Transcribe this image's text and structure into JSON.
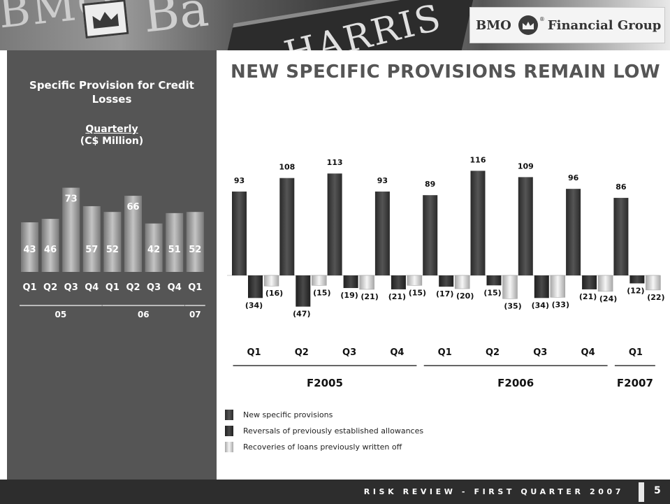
{
  "header": {
    "bg_text_1": "BMO",
    "bg_text_2": "Ba",
    "bg_text_3": "HARRIS",
    "brand_bmo": "BMO",
    "brand_fg": "Financial Group",
    "brand_reg": "®"
  },
  "sidebar": {
    "title": "Specific Provision for Credit Losses",
    "subtitle_underlined": "Quarterly",
    "subtitle_units": "(C$ Million)"
  },
  "main": {
    "title": "NEW SPECIFIC PROVISIONS REMAIN LOW"
  },
  "legend": {
    "items": [
      {
        "label": "New specific provisions",
        "color": "#3a3a3a"
      },
      {
        "label": "Reversals of previously established allowances",
        "color": "#2a2a2a"
      },
      {
        "label": "Recoveries of loans previously written off",
        "color": "#d8d8d8"
      }
    ]
  },
  "footer": {
    "text": "RISK REVIEW - FIRST QUARTER 2007",
    "page": "5"
  },
  "colors": {
    "sidebar_bg": "#555555",
    "new_bar": "#3a3a3a",
    "reversal_bar": "#2a2a2a",
    "recovery_bar": "#d8d8d8",
    "mini_bar": "#9a9a9a"
  },
  "chart_data": [
    {
      "type": "bar",
      "title": "Specific Provision for Credit Losses",
      "subtitle": "Quarterly (C$ Million)",
      "categories": [
        "Q1",
        "Q2",
        "Q3",
        "Q4",
        "Q1",
        "Q2",
        "Q3",
        "Q4",
        "Q1"
      ],
      "groups": [
        {
          "label": "05",
          "from": 0,
          "to": 3
        },
        {
          "label": "06",
          "from": 4,
          "to": 7
        },
        {
          "label": "07",
          "from": 8,
          "to": 8
        }
      ],
      "values": [
        43,
        46,
        73,
        57,
        52,
        66,
        42,
        51,
        52
      ],
      "value_labels": [
        "43",
        "46",
        "73",
        "57",
        "52",
        "66",
        "42",
        "51",
        "52"
      ]
    },
    {
      "type": "bar",
      "title": "NEW SPECIFIC PROVISIONS REMAIN LOW",
      "categories": [
        "Q1",
        "Q2",
        "Q3",
        "Q4",
        "Q1",
        "Q2",
        "Q3",
        "Q4",
        "Q1"
      ],
      "groups": [
        {
          "label": "F2005",
          "from": 0,
          "to": 3
        },
        {
          "label": "F2006",
          "from": 4,
          "to": 7
        },
        {
          "label": "F2007",
          "from": 8,
          "to": 8
        }
      ],
      "series": [
        {
          "name": "New specific provisions",
          "values": [
            93,
            108,
            113,
            93,
            89,
            116,
            109,
            96,
            86
          ],
          "labels": [
            "93",
            "108",
            "113",
            "93",
            "89",
            "116",
            "109",
            "96",
            "86"
          ]
        },
        {
          "name": "Reversals of previously established allowances",
          "values": [
            -34,
            -47,
            -19,
            -21,
            -17,
            -15,
            -34,
            -21,
            -12
          ],
          "labels": [
            "(34)",
            "(47)",
            "(19)",
            "(21)",
            "(17)",
            "(15)",
            "(34)",
            "(21)",
            "(12)"
          ]
        },
        {
          "name": "Recoveries of loans previously written off",
          "values": [
            -16,
            -15,
            -21,
            -15,
            -20,
            -35,
            -33,
            -24,
            -22
          ],
          "labels": [
            "(16)",
            "(15)",
            "(21)",
            "(15)",
            "(20)",
            "(35)",
            "(33)",
            "(24)",
            "(22)"
          ]
        }
      ],
      "legend_position": "bottom-left",
      "grid": false
    }
  ]
}
